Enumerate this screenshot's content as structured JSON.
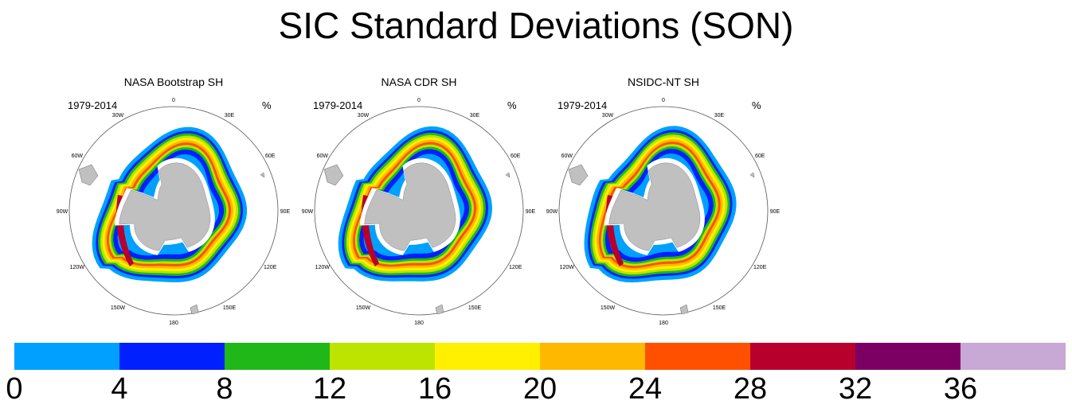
{
  "title": "SIC Standard Deviations (SON)",
  "panels": [
    {
      "title": "NASA Bootstrap SH",
      "period": "1979-2014",
      "unit": "%"
    },
    {
      "title": "NASA CDR SH",
      "period": "1979-2014",
      "unit": "%"
    },
    {
      "title": "NSIDC-NT SH",
      "period": "1979-2014",
      "unit": "%"
    }
  ],
  "longitude_labels": [
    "0",
    "30E",
    "60E",
    "90E",
    "120E",
    "150E",
    "180",
    "150W",
    "120W",
    "90W",
    "60W",
    "30W"
  ],
  "colorbar": {
    "labels": [
      "0",
      "4",
      "8",
      "12",
      "16",
      "20",
      "24",
      "28",
      "32",
      "36"
    ],
    "colors": [
      "#00a0ff",
      "#0020ff",
      "#20b818",
      "#bce400",
      "#fff000",
      "#ffb800",
      "#ff5000",
      "#b8002c",
      "#7c0064",
      "#c8a8d4"
    ]
  },
  "colors": {
    "land": "#c0c0c0",
    "ice_edge": "#ffffff",
    "map_border": "#555555"
  }
}
